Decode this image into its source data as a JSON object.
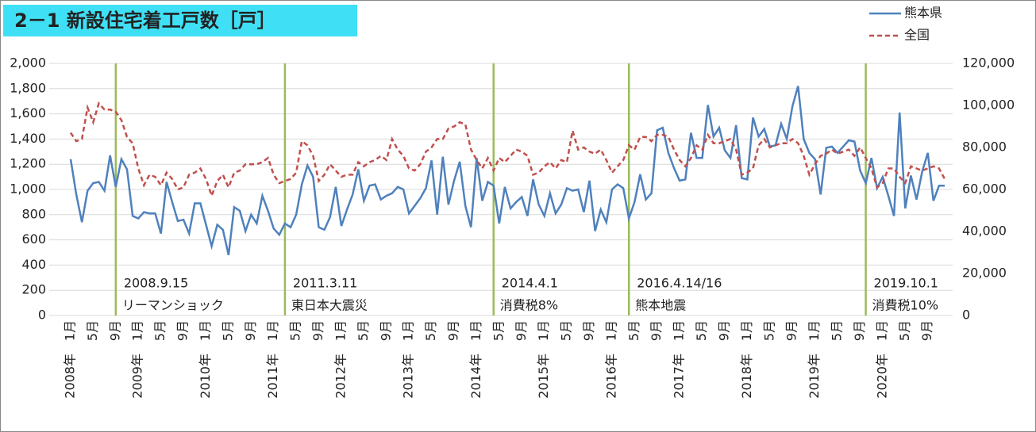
{
  "chart_data": {
    "type": "line",
    "title": "2－1 新設住宅着工戸数［戸］",
    "categories": [
      "1月",
      null,
      null,
      null,
      "5月",
      null,
      null,
      null,
      "9月",
      null,
      null,
      null,
      "1月",
      null,
      null,
      null,
      "5月",
      null,
      null,
      null,
      "9月",
      null,
      null,
      null,
      "1月",
      null,
      null,
      null,
      "5月",
      null,
      null,
      null,
      "9月",
      null,
      null,
      null,
      "1月",
      null,
      null,
      null,
      "5月",
      null,
      null,
      null,
      "9月",
      null,
      null,
      null,
      "1月",
      null,
      null,
      null,
      "5月",
      null,
      null,
      null,
      "9月",
      null,
      null,
      null,
      "1月",
      null,
      null,
      null,
      "5月",
      null,
      null,
      null,
      "9月",
      null,
      null,
      null,
      "1月",
      null,
      null,
      null,
      "5月",
      null,
      null,
      null,
      "9月",
      null,
      null,
      null,
      "1月",
      null,
      null,
      null,
      "5月",
      null,
      null,
      null,
      "9月",
      null,
      null,
      null,
      "1月",
      null,
      null,
      null,
      "5月",
      null,
      null,
      null,
      "9月",
      null,
      null,
      null,
      "1月",
      null,
      null,
      null,
      "5月",
      null,
      null,
      null,
      "9月",
      null,
      null,
      null,
      "1月",
      null,
      null,
      null,
      "5月",
      null,
      null,
      null,
      "9月",
      null,
      null,
      null,
      "1月",
      null,
      null,
      null,
      "5月",
      null,
      null,
      null,
      "9月",
      null,
      null,
      null,
      "1月",
      null,
      null,
      null,
      "5月",
      null,
      null,
      null,
      "9月",
      null,
      null,
      null
    ],
    "years": [
      "2008年",
      "2009年",
      "2010年",
      "2011年",
      "2012年",
      "2013年",
      "2014年",
      "2015年",
      "2016年",
      "2017年",
      "2018年",
      "2019年",
      "2020年"
    ],
    "series": [
      {
        "name": "熊本県",
        "color": "#4f81bd",
        "dash": "solid",
        "axis": "y",
        "values": [
          1240,
          960,
          740,
          990,
          1050,
          1060,
          990,
          1270,
          1020,
          1240,
          1160,
          790,
          770,
          820,
          810,
          810,
          650,
          1060,
          900,
          750,
          760,
          650,
          890,
          890,
          720,
          550,
          720,
          680,
          480,
          860,
          830,
          670,
          800,
          730,
          950,
          830,
          690,
          640,
          730,
          700,
          800,
          1040,
          1190,
          1100,
          700,
          680,
          780,
          1020,
          710,
          840,
          960,
          1160,
          910,
          1030,
          1040,
          920,
          950,
          970,
          1020,
          1000,
          810,
          870,
          930,
          1010,
          1230,
          800,
          1260,
          880,
          1070,
          1220,
          870,
          700,
          1250,
          910,
          1060,
          1030,
          730,
          1020,
          850,
          900,
          940,
          790,
          1080,
          880,
          790,
          970,
          810,
          880,
          1010,
          990,
          1000,
          820,
          1070,
          670,
          840,
          740,
          1000,
          1040,
          1010,
          770,
          900,
          1120,
          920,
          970,
          1470,
          1490,
          1290,
          1170,
          1070,
          1080,
          1450,
          1250,
          1250,
          1670,
          1420,
          1490,
          1310,
          1250,
          1510,
          1090,
          1080,
          1570,
          1420,
          1480,
          1340,
          1350,
          1520,
          1400,
          1660,
          1820,
          1400,
          1290,
          1240,
          960,
          1330,
          1340,
          1290,
          1340,
          1390,
          1380,
          1150,
          1050,
          1250,
          1010,
          1100,
          950,
          790,
          1610,
          850,
          1110,
          920,
          1140,
          1290,
          910,
          1030,
          1030
        ]
      },
      {
        "name": "全国",
        "color": "#c0504d",
        "dash": "dashed",
        "axis": "y2",
        "values": [
          87000,
          83000,
          84000,
          99000,
          92000,
          101000,
          98000,
          98000,
          97000,
          93000,
          85000,
          82000,
          70000,
          62000,
          67000,
          66000,
          62000,
          68000,
          65000,
          60000,
          61000,
          67000,
          68000,
          70000,
          65000,
          57000,
          64000,
          67000,
          61000,
          68000,
          69000,
          72000,
          72000,
          72000,
          73000,
          75000,
          67000,
          63000,
          64000,
          65000,
          68000,
          83000,
          81000,
          76000,
          64000,
          67000,
          72000,
          69000,
          66000,
          67000,
          67000,
          73000,
          71000,
          73000,
          74000,
          76000,
          74000,
          84000,
          79000,
          76000,
          70000,
          69000,
          72000,
          78000,
          80000,
          84000,
          84000,
          89000,
          90000,
          92000,
          91000,
          79000,
          74000,
          70000,
          75000,
          69000,
          75000,
          73000,
          76000,
          79000,
          78000,
          76000,
          67000,
          68000,
          71000,
          73000,
          70000,
          74000,
          73000,
          88000,
          79000,
          80000,
          78000,
          77000,
          79000,
          74000,
          68000,
          71000,
          74000,
          81000,
          79000,
          85000,
          85000,
          83000,
          86000,
          86000,
          85000,
          79000,
          74000,
          71000,
          75000,
          81000,
          79000,
          86000,
          82000,
          82000,
          83000,
          84000,
          79000,
          67000,
          68000,
          70000,
          81000,
          84000,
          80000,
          81000,
          82000,
          82000,
          84000,
          82000,
          76000,
          67000,
          72000,
          76000,
          77000,
          79000,
          77000,
          78000,
          79000,
          76000,
          80000,
          75000,
          70000,
          61000,
          63000,
          70000,
          70000,
          66000,
          63000,
          71000,
          70000,
          69000,
          70000,
          71000,
          70000,
          65000
        ]
      }
    ],
    "ylim": [
      0,
      2000
    ],
    "yticks": [
      0,
      200,
      400,
      600,
      800,
      {
        "value": 1000,
        "label": "1,000"
      },
      {
        "value": 1200,
        "label": "1,200"
      },
      {
        "value": 1400,
        "label": "1,400"
      },
      {
        "value": 1600,
        "label": "1,600"
      },
      {
        "value": 1800,
        "label": "1,800"
      },
      {
        "value": 2000,
        "label": "2,000"
      }
    ],
    "y2lim": [
      0,
      120000
    ],
    "y2ticks": [
      0,
      {
        "value": 20000,
        "label": "20,000"
      },
      {
        "value": 40000,
        "label": "40,000"
      },
      {
        "value": 60000,
        "label": "60,000"
      },
      {
        "value": 80000,
        "label": "80,000"
      },
      {
        "value": 100000,
        "label": "100,000"
      },
      {
        "value": 120000,
        "label": "120,000"
      }
    ],
    "grid": true,
    "legend": "top-right",
    "events": [
      {
        "at": 8,
        "date": "2008.9.15",
        "label": "リーマンショック"
      },
      {
        "at": 38,
        "date": "2011.3.11",
        "label": "東日本大震災"
      },
      {
        "at": 75,
        "date": "2014.4.1",
        "label": "消費税8%"
      },
      {
        "at": 99,
        "date": "2016.4.14/16",
        "label": "熊本地震"
      },
      {
        "at": 141,
        "date": "2019.10.1",
        "label": "消費税10%"
      }
    ],
    "event_color": "#9bbb59"
  }
}
